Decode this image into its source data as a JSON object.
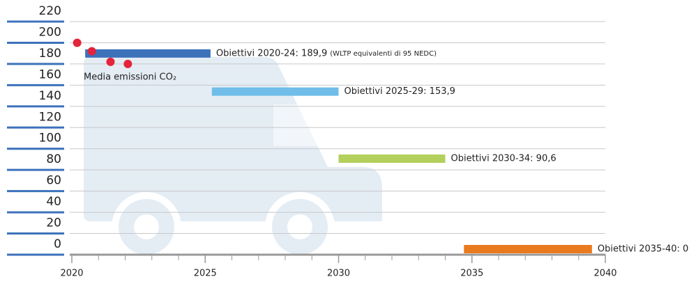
{
  "chart_data": {
    "type": "range",
    "annotation": "Media emissioni CO₂",
    "targets": [
      {
        "label": "Obiettivi 2020-24: 189,9",
        "note": "(WLTP equivalenti di 95 NEDC)",
        "value": 189.9,
        "x": [
          2020.5,
          2025.2
        ],
        "color": "#3d72bb"
      },
      {
        "label": "Obiettivi 2025-29: 153,9",
        "value": 153.9,
        "x": [
          2025.25,
          2030
        ],
        "color": "#70bde9"
      },
      {
        "label": "Obiettivi 2030-34: 90,6",
        "value": 90.6,
        "x": [
          2030,
          2034
        ],
        "color": "#b3d05c"
      },
      {
        "label": "Obiettivi 2035-40: 0",
        "value": 0,
        "x": [
          2034.7,
          2039.5
        ],
        "color": "#ea7a1e"
      }
    ],
    "points": {
      "x": [
        2020.2,
        2020.75,
        2021.45,
        2022.1
      ],
      "values": [
        200,
        192,
        182,
        180
      ],
      "color": "#e3243b"
    },
    "xlim": [
      2020,
      2040
    ],
    "xticks": [
      2020,
      2025,
      2030,
      2035,
      2040
    ],
    "ylim": [
      0,
      220
    ],
    "yticks": [
      0,
      20,
      40,
      60,
      80,
      100,
      120,
      140,
      160,
      180,
      200,
      220
    ],
    "grid": true
  }
}
